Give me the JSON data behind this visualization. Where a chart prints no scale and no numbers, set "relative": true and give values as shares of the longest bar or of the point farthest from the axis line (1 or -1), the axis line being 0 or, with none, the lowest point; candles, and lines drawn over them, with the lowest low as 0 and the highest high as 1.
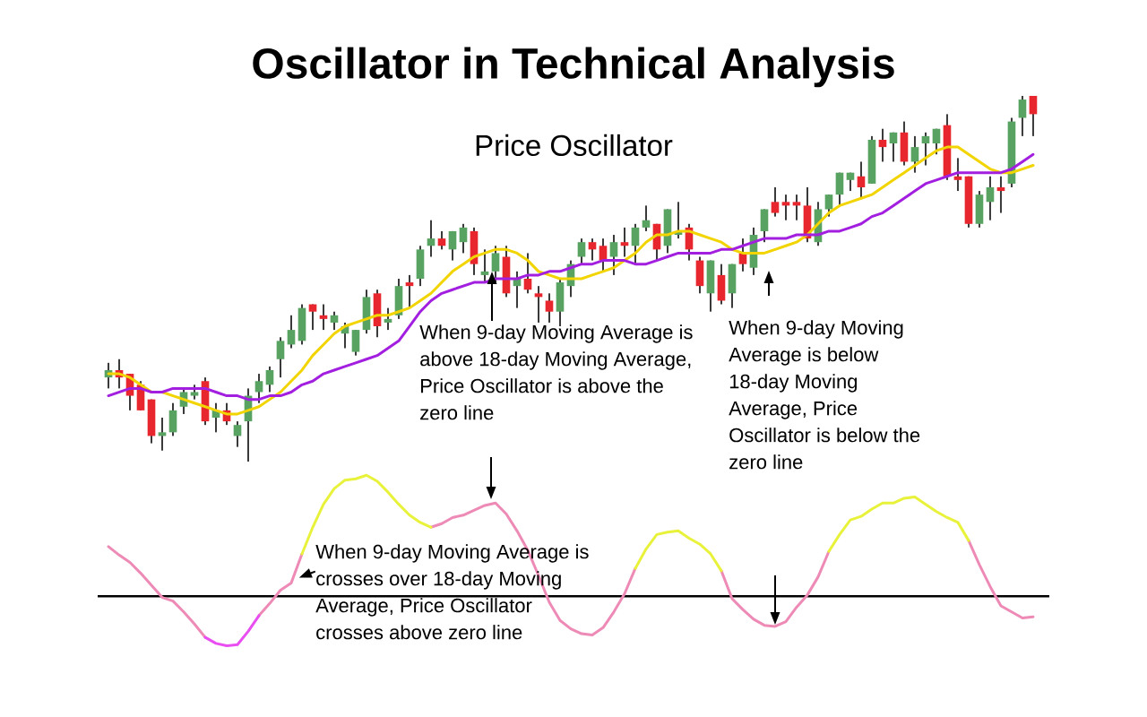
{
  "chart_data": [
    {
      "type": "candlestick",
      "title": "Oscillator in Technical Analysis",
      "subtitle": "Price Oscillator",
      "relative": true,
      "categories": [
        null,
        null,
        null,
        null,
        null,
        null,
        null,
        null,
        null,
        null,
        null,
        null,
        null,
        null,
        null,
        null,
        null,
        null,
        null,
        null,
        null,
        null,
        null,
        null,
        null,
        null,
        null,
        null,
        null,
        null,
        null,
        null,
        null,
        null,
        null,
        null,
        null,
        null,
        null,
        null,
        null,
        null,
        null,
        null,
        null,
        null,
        null,
        null,
        null,
        null,
        null,
        null,
        null,
        null,
        null,
        null,
        null,
        null,
        null,
        null,
        null,
        null,
        null,
        null,
        null,
        null,
        null,
        null,
        null,
        null,
        null,
        null,
        null,
        null,
        null,
        null,
        null,
        null,
        null,
        null,
        null,
        null,
        null,
        null,
        null,
        null,
        null
      ],
      "ohlc": [
        [
          0.23,
          0.27,
          0.2,
          0.25
        ],
        [
          0.25,
          0.28,
          0.2,
          0.23
        ],
        [
          0.24,
          0.24,
          0.14,
          0.18
        ],
        [
          0.21,
          0.22,
          0.14,
          0.14
        ],
        [
          0.17,
          0.17,
          0.05,
          0.07
        ],
        [
          0.07,
          0.12,
          0.03,
          0.08
        ],
        [
          0.08,
          0.16,
          0.07,
          0.14
        ],
        [
          0.15,
          0.2,
          0.13,
          0.19
        ],
        [
          0.18,
          0.21,
          0.17,
          0.19
        ],
        [
          0.22,
          0.23,
          0.1,
          0.11
        ],
        [
          0.12,
          0.16,
          0.08,
          0.14
        ],
        [
          0.14,
          0.16,
          0.1,
          0.11
        ],
        [
          0.07,
          0.11,
          0.04,
          0.1
        ],
        [
          0.11,
          0.2,
          0,
          0.18
        ],
        [
          0.19,
          0.24,
          0.16,
          0.22
        ],
        [
          0.21,
          0.26,
          0.19,
          0.25
        ],
        [
          0.28,
          0.34,
          0.23,
          0.33
        ],
        [
          0.32,
          0.4,
          0.31,
          0.36
        ],
        [
          0.33,
          0.43,
          0.32,
          0.42
        ],
        [
          0.43,
          0.43,
          0.36,
          0.41
        ],
        [
          0.4,
          0.43,
          0.36,
          0.39
        ],
        [
          0.38,
          0.41,
          0.36,
          0.4
        ],
        [
          0.35,
          0.38,
          0.31,
          0.37
        ],
        [
          0.3,
          0.36,
          0.29,
          0.36
        ],
        [
          0.36,
          0.47,
          0.35,
          0.45
        ],
        [
          0.46,
          0.47,
          0.34,
          0.37
        ],
        [
          0.38,
          0.42,
          0.36,
          0.39
        ],
        [
          0.4,
          0.5,
          0.39,
          0.48
        ],
        [
          0.49,
          0.51,
          0.42,
          0.48
        ],
        [
          0.5,
          0.59,
          0.48,
          0.58
        ],
        [
          0.59,
          0.66,
          0.56,
          0.61
        ],
        [
          0.61,
          0.63,
          0.58,
          0.59
        ],
        [
          0.58,
          0.63,
          0.55,
          0.63
        ],
        [
          0.6,
          0.65,
          0.57,
          0.64
        ],
        [
          0.63,
          0.64,
          0.51,
          0.54
        ],
        [
          0.51,
          0.58,
          0.49,
          0.52
        ],
        [
          0.52,
          0.59,
          0.49,
          0.57
        ],
        [
          0.56,
          0.59,
          0.45,
          0.46
        ],
        [
          0.48,
          0.52,
          0.42,
          0.5
        ],
        [
          0.5,
          0.57,
          0.46,
          0.47
        ],
        [
          0.46,
          0.48,
          0.38,
          0.45
        ],
        [
          0.44,
          0.46,
          0.38,
          0.41
        ],
        [
          0.41,
          0.5,
          0.37,
          0.49
        ],
        [
          0.48,
          0.55,
          0.45,
          0.54
        ],
        [
          0.56,
          0.61,
          0.54,
          0.6
        ],
        [
          0.6,
          0.61,
          0.55,
          0.58
        ],
        [
          0.59,
          0.61,
          0.52,
          0.55
        ],
        [
          0.56,
          0.62,
          0.51,
          0.6
        ],
        [
          0.6,
          0.64,
          0.56,
          0.59
        ],
        [
          0.59,
          0.65,
          0.54,
          0.64
        ],
        [
          0.64,
          0.7,
          0.63,
          0.66
        ],
        [
          0.65,
          0.65,
          0.55,
          0.58
        ],
        [
          0.59,
          0.69,
          0.57,
          0.69
        ],
        [
          0.62,
          0.71,
          0.61,
          0.63
        ],
        [
          0.64,
          0.65,
          0.55,
          0.58
        ],
        [
          0.55,
          0.56,
          0.46,
          0.48
        ],
        [
          0.46,
          0.55,
          0.41,
          0.55
        ],
        [
          0.51,
          0.54,
          0.43,
          0.44
        ],
        [
          0.46,
          0.54,
          0.42,
          0.54
        ],
        [
          0.57,
          0.61,
          0.52,
          0.54
        ],
        [
          0.53,
          0.64,
          0.51,
          0.62
        ],
        [
          0.63,
          0.69,
          0.6,
          0.69
        ],
        [
          0.71,
          0.75,
          0.67,
          0.68
        ],
        [
          0.71,
          0.73,
          0.66,
          0.7
        ],
        [
          0.71,
          0.73,
          0.66,
          0.7
        ],
        [
          0.7,
          0.75,
          0.6,
          0.61
        ],
        [
          0.6,
          0.71,
          0.59,
          0.69
        ],
        [
          0.69,
          0.73,
          0.67,
          0.73
        ],
        [
          0.73,
          0.79,
          0.7,
          0.79
        ],
        [
          0.77,
          0.79,
          0.74,
          0.79
        ],
        [
          0.78,
          0.82,
          0.72,
          0.75
        ],
        [
          0.76,
          0.89,
          0.76,
          0.88
        ],
        [
          0.88,
          0.91,
          0.82,
          0.86
        ],
        [
          0.87,
          0.9,
          0.82,
          0.9
        ],
        [
          0.9,
          0.93,
          0.81,
          0.82
        ],
        [
          0.82,
          0.89,
          0.79,
          0.86
        ],
        [
          0.87,
          0.9,
          0.81,
          0.89
        ],
        [
          0.87,
          0.91,
          0.84,
          0.91
        ],
        [
          0.92,
          0.95,
          0.77,
          0.78
        ],
        [
          0.78,
          0.83,
          0.74,
          0.77
        ],
        [
          0.78,
          0.78,
          0.64,
          0.65
        ],
        [
          0.65,
          0.74,
          0.64,
          0.73
        ],
        [
          0.71,
          0.78,
          0.66,
          0.75
        ],
        [
          0.75,
          0.78,
          0.68,
          0.74
        ],
        [
          0.76,
          0.94,
          0.75,
          0.93
        ],
        [
          0.94,
          1.0,
          0.89,
          0.99
        ],
        [
          1.0,
          1.0,
          0.89,
          0.95
        ]
      ],
      "colors": [
        "#58a262",
        "#e8262d",
        "#e8262d",
        "#e8262d",
        "#e8262d",
        "#58a262",
        "#58a262",
        "#58a262",
        "#58a262",
        "#e8262d",
        "#58a262",
        "#e8262d",
        "#58a262",
        "#58a262",
        "#58a262",
        "#58a262",
        "#58a262",
        "#58a262",
        "#58a262",
        "#e8262d",
        "#e8262d",
        "#58a262",
        "#58a262",
        "#58a262",
        "#58a262",
        "#e8262d",
        "#58a262",
        "#58a262",
        "#e8262d",
        "#58a262",
        "#58a262",
        "#e8262d",
        "#58a262",
        "#58a262",
        "#e8262d",
        "#58a262",
        "#58a262",
        "#e8262d",
        "#58a262",
        "#e8262d",
        "#e8262d",
        "#e8262d",
        "#58a262",
        "#58a262",
        "#58a262",
        "#e8262d",
        "#e8262d",
        "#58a262",
        "#e8262d",
        "#58a262",
        "#58a262",
        "#e8262d",
        "#58a262",
        "#58a262",
        "#e8262d",
        "#e8262d",
        "#58a262",
        "#e8262d",
        "#58a262",
        "#e8262d",
        "#58a262",
        "#58a262",
        "#e8262d",
        "#e8262d",
        "#e8262d",
        "#e8262d",
        "#58a262",
        "#58a262",
        "#58a262",
        "#58a262",
        "#e8262d",
        "#58a262",
        "#e8262d",
        "#58a262",
        "#e8262d",
        "#58a262",
        "#58a262",
        "#58a262",
        "#e8262d",
        "#e8262d",
        "#e8262d",
        "#58a262",
        "#58a262",
        "#e8262d",
        "#58a262",
        "#58a262",
        "#e8262d"
      ],
      "series": [
        {
          "type": "line",
          "color": "#f2d400",
          "values": [
            0.24,
            0.24,
            0.23,
            0.21,
            0.19,
            0.19,
            0.18,
            0.17,
            0.16,
            0.15,
            0.14,
            0.13,
            0.13,
            0.14,
            0.15,
            0.17,
            0.19,
            0.22,
            0.25,
            0.29,
            0.32,
            0.35,
            0.37,
            0.38,
            0.39,
            0.4,
            0.4,
            0.41,
            0.42,
            0.44,
            0.46,
            0.49,
            0.52,
            0.54,
            0.56,
            0.57,
            0.58,
            0.58,
            0.57,
            0.55,
            0.52,
            0.51,
            0.5,
            0.5,
            0.5,
            0.51,
            0.52,
            0.53,
            0.55,
            0.57,
            0.6,
            0.62,
            0.62,
            0.63,
            0.63,
            0.62,
            0.61,
            0.6,
            0.58,
            0.57,
            0.57,
            0.57,
            0.58,
            0.59,
            0.6,
            0.62,
            0.65,
            0.68,
            0.7,
            0.71,
            0.72,
            0.73,
            0.75,
            0.77,
            0.79,
            0.81,
            0.83,
            0.85,
            0.86,
            0.86,
            0.84,
            0.82,
            0.8,
            0.79,
            0.79,
            0.8,
            0.81
          ]
        },
        {
          "type": "line",
          "color": "#a21fe0",
          "values": [
            0.18,
            0.19,
            0.2,
            0.2,
            0.19,
            0.19,
            0.2,
            0.2,
            0.2,
            0.2,
            0.19,
            0.18,
            0.18,
            0.17,
            0.17,
            0.18,
            0.18,
            0.19,
            0.21,
            0.22,
            0.24,
            0.25,
            0.26,
            0.27,
            0.28,
            0.29,
            0.31,
            0.33,
            0.37,
            0.41,
            0.44,
            0.46,
            0.47,
            0.48,
            0.49,
            0.49,
            0.5,
            0.5,
            0.5,
            0.51,
            0.51,
            0.52,
            0.52,
            0.53,
            0.54,
            0.54,
            0.55,
            0.55,
            0.55,
            0.54,
            0.54,
            0.55,
            0.56,
            0.57,
            0.57,
            0.57,
            0.57,
            0.58,
            0.58,
            0.59,
            0.6,
            0.61,
            0.61,
            0.61,
            0.62,
            0.62,
            0.62,
            0.63,
            0.63,
            0.64,
            0.65,
            0.67,
            0.68,
            0.7,
            0.72,
            0.74,
            0.76,
            0.77,
            0.78,
            0.79,
            0.79,
            0.79,
            0.79,
            0.79,
            0.8,
            0.82,
            0.84
          ]
        }
      ],
      "annotations": [
        "When 9-day Moving Average is above 18-day Moving Average, Price Oscillator is above the zero line",
        "When 9-day Moving Average is below 18-day Moving Average, Price Oscillator is below the zero line"
      ]
    },
    {
      "type": "line",
      "relative": true,
      "categories": [
        null,
        null,
        null,
        null,
        null,
        null,
        null,
        null,
        null,
        null,
        null,
        null,
        null,
        null,
        null,
        null,
        null,
        null,
        null,
        null,
        null,
        null,
        null,
        null,
        null,
        null,
        null,
        null,
        null,
        null,
        null,
        null,
        null,
        null,
        null,
        null,
        null,
        null,
        null,
        null,
        null,
        null,
        null,
        null,
        null,
        null,
        null,
        null,
        null,
        null,
        null,
        null,
        null,
        null,
        null,
        null,
        null,
        null,
        null,
        null,
        null,
        null,
        null,
        null,
        null,
        null,
        null,
        null,
        null,
        null,
        null,
        null,
        null,
        null,
        null,
        null,
        null,
        null,
        null,
        null,
        null,
        null,
        null,
        null,
        null,
        null,
        null
      ],
      "series": [
        {
          "color": "#ee8ab6",
          "values": [
            0.41,
            0.34,
            0.28,
            0.19,
            0.09,
            -0.01,
            -0.04,
            -0.13,
            -0.23,
            -0.34,
            null,
            null,
            null,
            null,
            -0.16,
            -0.06,
            0.05,
            0.11,
            0.35,
            null,
            null,
            null,
            null,
            null,
            null,
            null,
            null,
            null,
            null,
            null,
            0.57,
            0.6,
            0.65,
            0.67,
            0.71,
            0.75,
            0.77,
            0.68,
            0.54,
            0.38,
            0.17,
            -0.05,
            -0.2,
            -0.27,
            -0.31,
            -0.32,
            -0.26,
            -0.13,
            0.02,
            0.23,
            null,
            null,
            null,
            null,
            null,
            null,
            null,
            0.21,
            -0.02,
            -0.11,
            -0.19,
            -0.24,
            -0.25,
            -0.21,
            -0.09,
            0.01,
            0.16,
            0.37,
            null,
            null,
            null,
            null,
            null,
            null,
            null,
            null,
            null,
            null,
            null,
            null,
            0.46,
            0.26,
            0.08,
            -0.08,
            -0.13,
            -0.18,
            -0.17
          ]
        },
        {
          "color": "#e9f23a",
          "values": [
            null,
            null,
            null,
            null,
            null,
            null,
            null,
            null,
            null,
            null,
            null,
            null,
            null,
            null,
            null,
            null,
            null,
            null,
            0.35,
            0.57,
            0.76,
            0.89,
            0.96,
            0.97,
            1.0,
            0.95,
            0.86,
            0.76,
            0.67,
            0.61,
            0.57,
            null,
            null,
            null,
            null,
            null,
            null,
            null,
            null,
            null,
            null,
            null,
            null,
            null,
            null,
            null,
            null,
            null,
            null,
            0.23,
            0.39,
            0.51,
            0.53,
            0.54,
            0.48,
            0.43,
            0.35,
            0.21,
            null,
            null,
            null,
            null,
            null,
            null,
            null,
            null,
            null,
            0.37,
            0.51,
            0.63,
            0.66,
            0.72,
            0.77,
            0.77,
            0.81,
            0.82,
            0.76,
            0.7,
            0.65,
            0.61,
            0.46,
            null,
            null,
            null,
            null,
            null,
            null
          ]
        },
        {
          "color": "#e84ef0",
          "values": [
            null,
            null,
            null,
            null,
            null,
            null,
            null,
            null,
            null,
            -0.34,
            -0.39,
            -0.41,
            -0.4,
            -0.29,
            -0.16,
            null,
            null,
            null,
            null,
            null,
            null,
            null,
            null,
            null,
            null,
            null,
            null,
            null,
            null,
            null,
            null,
            null,
            null,
            null,
            null,
            null,
            null,
            null,
            null,
            null,
            null,
            null,
            null,
            null,
            null,
            null,
            null,
            null,
            null,
            null,
            null,
            null,
            null,
            null,
            null,
            null,
            null,
            null,
            null,
            null,
            null,
            null,
            null,
            null,
            null,
            null,
            null,
            null,
            null,
            null,
            null,
            null,
            null,
            null,
            null,
            null,
            null,
            null,
            null,
            null,
            null,
            null,
            null,
            null,
            null,
            null,
            null
          ]
        }
      ],
      "ref_lines": [
        {
          "axis": "y",
          "value": 0,
          "color": "#000000"
        }
      ],
      "annotations": [
        "When 9-day Moving Average is crosses over 18-day Moving Average, Price Oscillator crosses above zero line"
      ]
    }
  ]
}
